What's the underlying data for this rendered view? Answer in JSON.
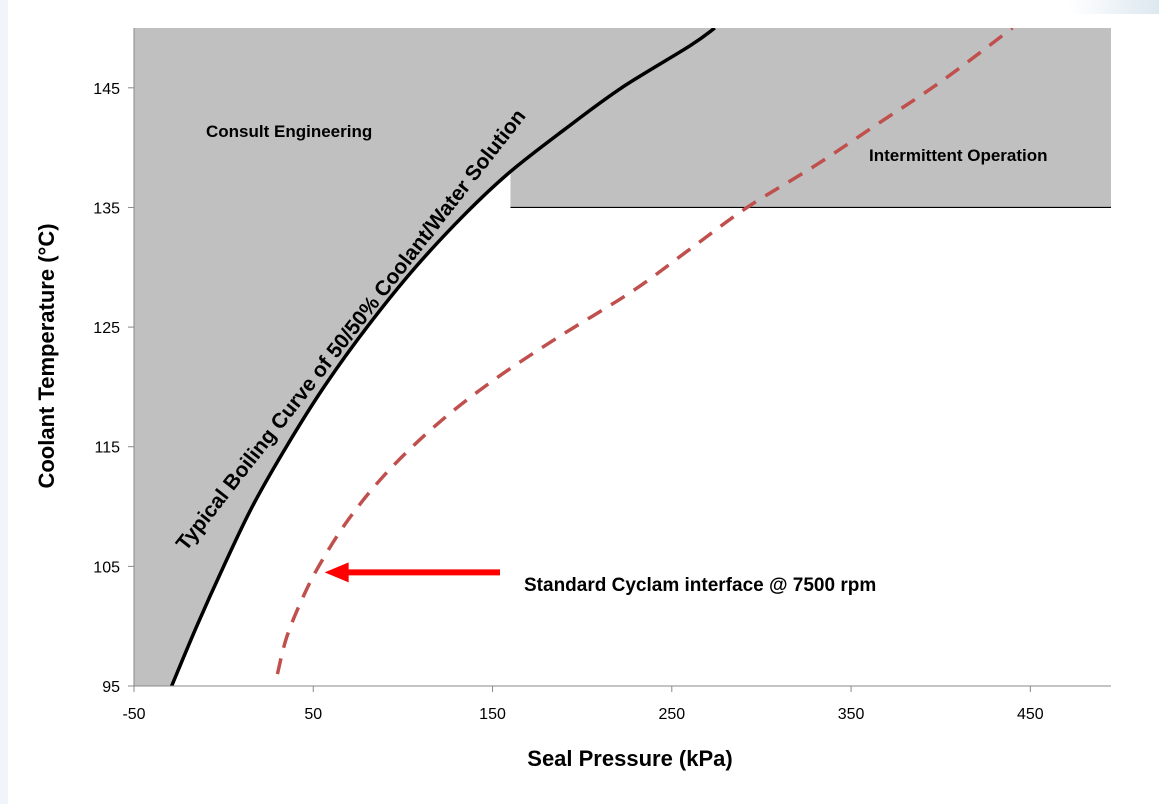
{
  "chart_data": {
    "type": "line",
    "xlabel": "Seal Pressure (kPa)",
    "ylabel": "Coolant Temperature (°C)",
    "xlim": [
      -50,
      495
    ],
    "ylim": [
      95,
      150
    ],
    "x_ticks": [
      -50,
      50,
      150,
      250,
      350,
      450
    ],
    "x_tick_labels": [
      "-50",
      "50",
      "150",
      "250",
      "350",
      "450"
    ],
    "y_ticks": [
      95,
      105,
      115,
      125,
      135,
      145
    ],
    "y_tick_labels": [
      "95",
      "105",
      "115",
      "125",
      "135",
      "145"
    ],
    "grid": false,
    "colors": {
      "shaded_region": "#c0c0c0",
      "boiling_curve": "#000000",
      "cyclam_curve": "#c0504d",
      "arrow": "#ff0000"
    },
    "series": [
      {
        "name": "Typical Boiling Curve of 50/50% Coolant/Water Solution",
        "style": "solid",
        "points": [
          [
            -29,
            95
          ],
          [
            -15,
            100
          ],
          [
            0,
            105
          ],
          [
            16,
            110
          ],
          [
            35,
            115
          ],
          [
            56,
            120
          ],
          [
            80,
            125
          ],
          [
            107,
            130
          ],
          [
            135,
            134.5
          ],
          [
            160,
            138
          ],
          [
            190,
            141.5
          ],
          [
            222,
            145
          ],
          [
            260,
            148.5
          ],
          [
            274,
            150
          ]
        ]
      },
      {
        "name": "Standard Cyclam interface @ 7500 rpm",
        "style": "dashed",
        "points": [
          [
            30,
            96
          ],
          [
            35,
            99
          ],
          [
            43,
            102
          ],
          [
            53,
            105
          ],
          [
            70,
            109
          ],
          [
            92,
            113
          ],
          [
            120,
            117
          ],
          [
            150,
            120.5
          ],
          [
            185,
            124
          ],
          [
            228,
            128
          ],
          [
            260,
            131.5
          ],
          [
            292,
            135
          ],
          [
            330,
            138.5
          ],
          [
            365,
            142
          ],
          [
            400,
            145.5
          ],
          [
            440,
            150
          ]
        ]
      }
    ],
    "regions": [
      {
        "label": "Consult Engineering",
        "description": "shaded area above/left of boiling curve"
      },
      {
        "label": "Intermittent Operation",
        "y_min": 135,
        "y_max": 150
      }
    ],
    "annotations": {
      "boiling_curve_label": "Typical Boiling Curve of 50/50% Coolant/Water Solution",
      "consult_label": "Consult Engineering",
      "intermittent_label": "Intermittent Operation",
      "cyclam_label": "Standard Cyclam interface @ 7500 rpm"
    },
    "arrow": {
      "from": [
        64,
        104.5
      ],
      "to": [
        61,
        104.5
      ]
    }
  }
}
